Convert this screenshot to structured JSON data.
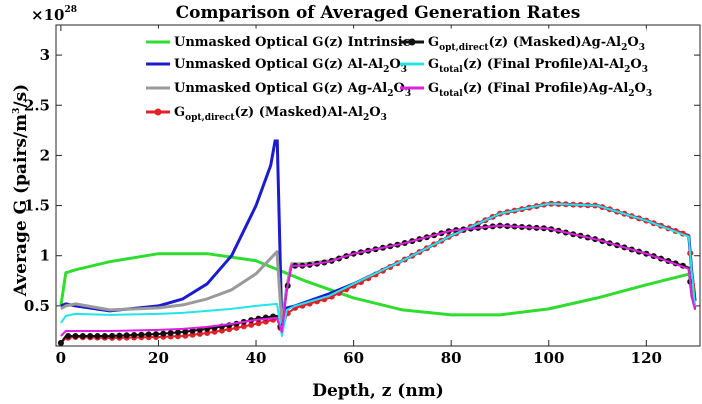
{
  "chart_data": {
    "type": "line",
    "title": "Comparison of Averaged Generation Rates",
    "xlabel": "Depth, z (nm)",
    "ylabel_main": "Average G (pairs/m",
    "ylabel_sup": "3",
    "ylabel_end": "/s)",
    "exponent_prefix": "×10",
    "exponent_power": "28",
    "xlim": [
      -1,
      131
    ],
    "ylim": [
      0.1,
      3.3
    ],
    "xticks": [
      0,
      20,
      40,
      60,
      80,
      100,
      120
    ],
    "xtick_labels": [
      "0",
      "20",
      "40",
      "60",
      "80",
      "100",
      "120"
    ],
    "yticks": [
      0.5,
      1,
      1.5,
      2,
      2.5,
      3
    ],
    "ytick_labels": [
      "0.5",
      "1",
      "1.5",
      "2",
      "2.5",
      "3"
    ],
    "grid": false,
    "legend_position": "top",
    "series": [
      {
        "name": "Unmasked Optical G(z) Intrinsic",
        "label_parts": [
          "Unmasked Optical G(z) Intrinsic"
        ],
        "color": "#2fdc2f",
        "width": 3,
        "markers": false,
        "points": [
          [
            0,
            0.5
          ],
          [
            1,
            0.83
          ],
          [
            3,
            0.86
          ],
          [
            10,
            0.94
          ],
          [
            20,
            1.02
          ],
          [
            30,
            1.02
          ],
          [
            40,
            0.95
          ],
          [
            50,
            0.75
          ],
          [
            60,
            0.58
          ],
          [
            70,
            0.46
          ],
          [
            80,
            0.41
          ],
          [
            90,
            0.41
          ],
          [
            100,
            0.47
          ],
          [
            110,
            0.58
          ],
          [
            120,
            0.71
          ],
          [
            129,
            0.82
          ]
        ]
      },
      {
        "name": "Unmasked Optical G(z) Al-Al2O3",
        "label_parts": [
          "Unmasked Optical G(z) Al-Al",
          "2",
          "O",
          "3"
        ],
        "color": "#1b1bd0",
        "width": 3,
        "markers": false,
        "points": [
          [
            0,
            0.5
          ],
          [
            1,
            0.52
          ],
          [
            3,
            0.5
          ],
          [
            10,
            0.45
          ],
          [
            20,
            0.5
          ],
          [
            25,
            0.57
          ],
          [
            30,
            0.72
          ],
          [
            35,
            1.0
          ],
          [
            40,
            1.5
          ],
          [
            43,
            1.9
          ],
          [
            44.3,
            2.25
          ],
          [
            45.3,
            0.27
          ],
          [
            46.3,
            0.48
          ],
          [
            48,
            0.5
          ],
          [
            55,
            0.62
          ],
          [
            60,
            0.72
          ],
          [
            70,
            0.95
          ],
          [
            80,
            1.2
          ],
          [
            90,
            1.42
          ],
          [
            100,
            1.52
          ],
          [
            110,
            1.5
          ],
          [
            120,
            1.35
          ],
          [
            128.7,
            1.2
          ],
          [
            129.3,
            0.85
          ],
          [
            130,
            0.55
          ]
        ]
      },
      {
        "name": "Unmasked Optical G(z) Ag-Al2O3",
        "label_parts": [
          "Unmasked Optical G(z) Ag-Al",
          "2",
          "O",
          "3"
        ],
        "color": "#9a9a9a",
        "width": 3,
        "markers": false,
        "points": [
          [
            0,
            0.47
          ],
          [
            1,
            0.5
          ],
          [
            3,
            0.52
          ],
          [
            10,
            0.46
          ],
          [
            20,
            0.48
          ],
          [
            25,
            0.51
          ],
          [
            30,
            0.57
          ],
          [
            35,
            0.66
          ],
          [
            40,
            0.82
          ],
          [
            44.3,
            1.04
          ],
          [
            45.3,
            0.3
          ],
          [
            46.3,
            0.7
          ],
          [
            47.3,
            0.92
          ],
          [
            50,
            0.92
          ],
          [
            55,
            0.95
          ],
          [
            60,
            1.02
          ],
          [
            70,
            1.12
          ],
          [
            80,
            1.25
          ],
          [
            90,
            1.3
          ],
          [
            100,
            1.27
          ],
          [
            110,
            1.16
          ],
          [
            120,
            1.02
          ],
          [
            128.7,
            0.88
          ],
          [
            129.3,
            0.6
          ],
          [
            130,
            0.48
          ]
        ]
      },
      {
        "name": "Gopt,direct(z) (Masked)Al-Al2O3",
        "label_parts": [
          "G",
          "opt,direct",
          "(z) (Masked)Al-Al",
          "2",
          "O",
          "3"
        ],
        "color": "#e0202a",
        "width": 2,
        "markers": true,
        "marker_color": "#e0202a",
        "points": [
          [
            0,
            0.13
          ],
          [
            1,
            0.18
          ],
          [
            3,
            0.19
          ],
          [
            10,
            0.18
          ],
          [
            20,
            0.19
          ],
          [
            25,
            0.2
          ],
          [
            30,
            0.23
          ],
          [
            35,
            0.27
          ],
          [
            40,
            0.32
          ],
          [
            44.3,
            0.37
          ],
          [
            45.3,
            0.24
          ],
          [
            46.3,
            0.42
          ],
          [
            48,
            0.48
          ],
          [
            55,
            0.58
          ],
          [
            60,
            0.7
          ],
          [
            70,
            0.95
          ],
          [
            80,
            1.2
          ],
          [
            90,
            1.42
          ],
          [
            100,
            1.52
          ],
          [
            110,
            1.5
          ],
          [
            120,
            1.35
          ],
          [
            128.7,
            1.2
          ],
          [
            129.3,
            0.85
          ],
          [
            130,
            0.62
          ]
        ]
      },
      {
        "name": "Gopt,direct(z) (Masked)Ag-Al2O3",
        "label_parts": [
          "G",
          "opt,direct",
          "(z) (Masked)Ag-Al",
          "2",
          "O",
          "3"
        ],
        "color": "#111111",
        "width": 2,
        "markers": true,
        "marker_color": "#111111",
        "points": [
          [
            0,
            0.13
          ],
          [
            1,
            0.2
          ],
          [
            3,
            0.2
          ],
          [
            10,
            0.2
          ],
          [
            20,
            0.22
          ],
          [
            25,
            0.24
          ],
          [
            30,
            0.27
          ],
          [
            35,
            0.31
          ],
          [
            40,
            0.37
          ],
          [
            44.3,
            0.4
          ],
          [
            45.3,
            0.25
          ],
          [
            46.3,
            0.65
          ],
          [
            47.3,
            0.9
          ],
          [
            50,
            0.9
          ],
          [
            55,
            0.94
          ],
          [
            60,
            1.02
          ],
          [
            70,
            1.12
          ],
          [
            80,
            1.25
          ],
          [
            90,
            1.3
          ],
          [
            100,
            1.27
          ],
          [
            110,
            1.16
          ],
          [
            120,
            1.02
          ],
          [
            128.7,
            0.88
          ],
          [
            129.3,
            0.6
          ],
          [
            130,
            0.47
          ]
        ]
      },
      {
        "name": "Gtotal(z) (Final Profile)Al-Al2O3",
        "label_parts": [
          "G",
          "total",
          "(z) (Final Profile)Al-Al",
          "2",
          "O",
          "3"
        ],
        "color": "#22e5e8",
        "width": 2,
        "markers": false,
        "points": [
          [
            0,
            0.33
          ],
          [
            1,
            0.4
          ],
          [
            3,
            0.42
          ],
          [
            10,
            0.41
          ],
          [
            20,
            0.42
          ],
          [
            25,
            0.43
          ],
          [
            30,
            0.45
          ],
          [
            35,
            0.47
          ],
          [
            40,
            0.5
          ],
          [
            44.3,
            0.52
          ],
          [
            45.3,
            0.2
          ],
          [
            46.3,
            0.46
          ],
          [
            48,
            0.5
          ],
          [
            55,
            0.6
          ],
          [
            60,
            0.72
          ],
          [
            70,
            0.95
          ],
          [
            80,
            1.2
          ],
          [
            90,
            1.42
          ],
          [
            100,
            1.52
          ],
          [
            110,
            1.5
          ],
          [
            120,
            1.35
          ],
          [
            128.7,
            1.19
          ],
          [
            129.3,
            0.84
          ],
          [
            130,
            0.5
          ]
        ]
      },
      {
        "name": "Gtotal(z) (Final Profile)Ag-Al2O3",
        "label_parts": [
          "G",
          "total",
          "(z) (Final Profile)Ag-Al",
          "2",
          "O",
          "3"
        ],
        "color": "#e020e0",
        "width": 2,
        "markers": false,
        "points": [
          [
            0,
            0.2
          ],
          [
            1,
            0.25
          ],
          [
            3,
            0.25
          ],
          [
            10,
            0.25
          ],
          [
            20,
            0.26
          ],
          [
            25,
            0.27
          ],
          [
            30,
            0.29
          ],
          [
            35,
            0.32
          ],
          [
            40,
            0.36
          ],
          [
            44.3,
            0.38
          ],
          [
            45.3,
            0.24
          ],
          [
            46.3,
            0.66
          ],
          [
            47.3,
            0.9
          ],
          [
            50,
            0.9
          ],
          [
            55,
            0.94
          ],
          [
            60,
            1.02
          ],
          [
            70,
            1.12
          ],
          [
            80,
            1.25
          ],
          [
            90,
            1.3
          ],
          [
            100,
            1.27
          ],
          [
            110,
            1.16
          ],
          [
            120,
            1.02
          ],
          [
            128.7,
            0.87
          ],
          [
            129.3,
            0.6
          ],
          [
            130,
            0.46
          ]
        ]
      }
    ]
  }
}
